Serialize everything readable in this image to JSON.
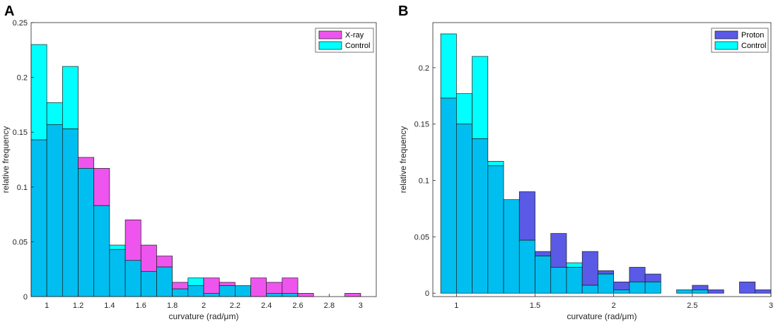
{
  "colors": {
    "xray": "#ee55ee",
    "control": "#00ffff",
    "proton": "#5a5ae6",
    "overlap": "#00bff0",
    "axis": "#262626",
    "bar_edge": "#1a1a1a",
    "legend_edge": "#555555"
  },
  "chart_data": [
    {
      "panel_label": "A",
      "type": "bar",
      "title": "",
      "xlabel": "curvature (rad/μm)",
      "ylabel": "relative frequency",
      "xlim": [
        0.9,
        3.1
      ],
      "ylim": [
        0,
        0.25
      ],
      "xticks": [
        1,
        1.2,
        1.4,
        1.6,
        1.8,
        2,
        2.2,
        2.4,
        2.6,
        2.8,
        3
      ],
      "xtick_labels": [
        "1",
        "1.2",
        "1.4",
        "1.6",
        "1.8",
        "2",
        "2.2",
        "2.4",
        "2.6",
        "2.8",
        "3"
      ],
      "yticks": [
        0,
        0.05,
        0.1,
        0.15,
        0.2,
        0.25
      ],
      "ytick_labels": [
        "0",
        "0.05",
        "0.1",
        "0.15",
        "0.2",
        "0.25"
      ],
      "legend": {
        "position": "top-right",
        "entries": [
          "X-ray",
          "Control"
        ]
      },
      "bin_edges": [
        0.9,
        1.0,
        1.1,
        1.2,
        1.3,
        1.4,
        1.5,
        1.6,
        1.7,
        1.8,
        1.9,
        2.0,
        2.1,
        2.2,
        2.3,
        2.4,
        2.5,
        2.6,
        2.7,
        2.8,
        2.9,
        3.0
      ],
      "series": [
        {
          "name": "X-ray",
          "color_key": "xray",
          "values": [
            0.143,
            0.157,
            0.153,
            0.127,
            0.117,
            0.043,
            0.07,
            0.047,
            0.037,
            0.013,
            0.01,
            0.017,
            0.013,
            0.01,
            0.017,
            0.013,
            0.017,
            0.003,
            0.0,
            0.0,
            0.003
          ]
        },
        {
          "name": "Control",
          "color_key": "control",
          "values": [
            0.23,
            0.177,
            0.21,
            0.117,
            0.083,
            0.047,
            0.033,
            0.023,
            0.027,
            0.007,
            0.017,
            0.003,
            0.01,
            0.01,
            0.0,
            0.003,
            0.003,
            0.0,
            0.0,
            0.0,
            0.0
          ]
        }
      ]
    },
    {
      "panel_label": "B",
      "type": "bar",
      "title": "",
      "xlabel": "curvature (rad/μm)",
      "ylabel": "relative frequency",
      "xlim": [
        0.85,
        3.0
      ],
      "ylim": [
        -0.003,
        0.24
      ],
      "xticks": [
        1,
        1.5,
        2,
        2.5,
        3
      ],
      "xtick_labels": [
        "1",
        "1.5",
        "2",
        "2.5",
        "3"
      ],
      "yticks": [
        0,
        0.05,
        0.1,
        0.15,
        0.2
      ],
      "ytick_labels": [
        "0",
        "0.05",
        "0.1",
        "0.15",
        "0.2"
      ],
      "legend": {
        "position": "top-right",
        "entries": [
          "Proton",
          "Control"
        ]
      },
      "bin_edges": [
        0.9,
        1.0,
        1.1,
        1.2,
        1.3,
        1.4,
        1.5,
        1.6,
        1.7,
        1.8,
        1.9,
        2.0,
        2.1,
        2.2,
        2.3,
        2.4,
        2.5,
        2.6,
        2.7,
        2.8,
        2.9,
        3.0
      ],
      "series": [
        {
          "name": "Proton",
          "color_key": "proton",
          "values": [
            0.173,
            0.15,
            0.137,
            0.113,
            0.083,
            0.09,
            0.037,
            0.053,
            0.023,
            0.037,
            0.02,
            0.01,
            0.023,
            0.017,
            0.0,
            0.003,
            0.007,
            0.003,
            0.0,
            0.01,
            0.003
          ]
        },
        {
          "name": "Control",
          "color_key": "control",
          "values": [
            0.23,
            0.177,
            0.21,
            0.117,
            0.083,
            0.047,
            0.033,
            0.023,
            0.027,
            0.007,
            0.017,
            0.003,
            0.01,
            0.01,
            0.0,
            0.003,
            0.003,
            0.0,
            0.0,
            0.0,
            0.0
          ]
        }
      ]
    }
  ]
}
